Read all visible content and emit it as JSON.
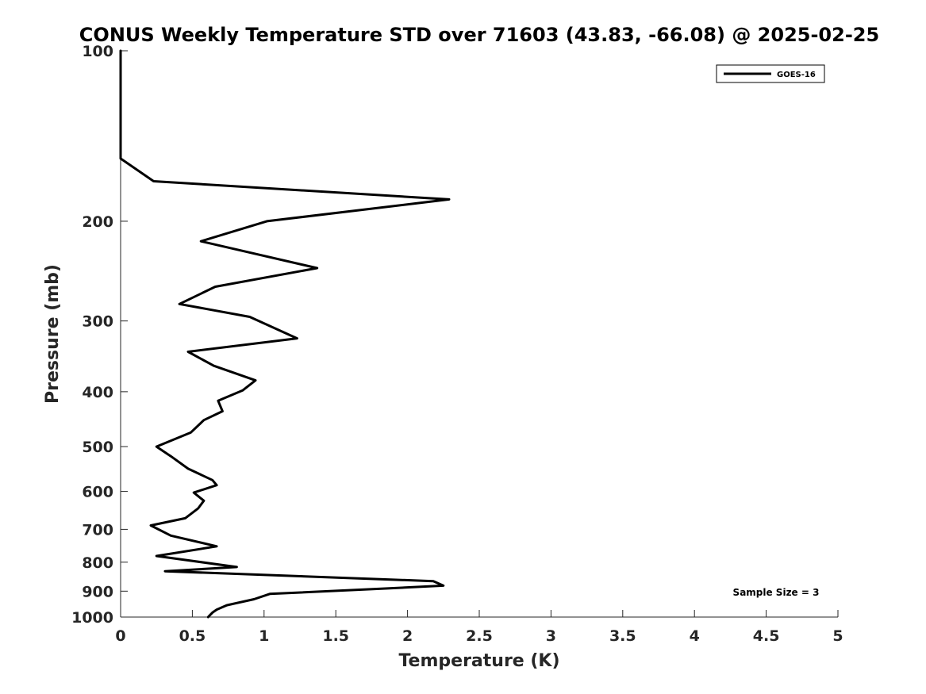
{
  "chart_data": {
    "type": "line",
    "title": "CONUS Weekly Temperature STD over 71603 (43.83, -66.08) @ 2025-02-25",
    "xlabel": "Temperature (K)",
    "ylabel": "Pressure (mb)",
    "xlim": [
      0,
      5
    ],
    "ylim": [
      100,
      1000
    ],
    "yscale": "log",
    "y_reversed": true,
    "grid": false,
    "x_ticks": [
      0,
      0.5,
      1,
      1.5,
      2,
      2.5,
      3,
      3.5,
      4,
      4.5,
      5
    ],
    "x_tick_labels": [
      "0",
      "0.5",
      "1",
      "1.5",
      "2",
      "2.5",
      "3",
      "3.5",
      "4",
      "4.5",
      "5"
    ],
    "y_ticks": [
      100,
      200,
      300,
      400,
      500,
      600,
      700,
      800,
      900,
      1000
    ],
    "y_tick_labels": [
      "100",
      "200",
      "300",
      "400",
      "500",
      "600",
      "700",
      "800",
      "900",
      "1000"
    ],
    "legend_position": "top-right",
    "annotation": "Sample Size = 3",
    "series": [
      {
        "name": "GOES-16",
        "color": "#000000",
        "x": [
          0,
          0,
          0.23,
          2.29,
          1.02,
          0.56,
          1.37,
          0.66,
          0.41,
          0.9,
          1.23,
          0.47,
          0.65,
          0.94,
          0.85,
          0.68,
          0.71,
          0.58,
          0.49,
          0.25,
          0.35,
          0.47,
          0.64,
          0.67,
          0.51,
          0.58,
          0.54,
          0.45,
          0.21,
          0.35,
          0.67,
          0.25,
          0.81,
          0.31,
          2.18,
          2.25,
          1.86,
          1.04,
          0.93,
          0.74,
          0.67,
          0.64,
          0.62,
          0.61
        ],
        "y": [
          100,
          155,
          170,
          183,
          200,
          217,
          242,
          261,
          280,
          295,
          322,
          340,
          360,
          382,
          398,
          415,
          433,
          449,
          472,
          500,
          520,
          547,
          573,
          585,
          603,
          623,
          643,
          669,
          689,
          718,
          750,
          780,
          816,
          830,
          864,
          880,
          890,
          910,
          930,
          953,
          970,
          982,
          994,
          1000
        ]
      }
    ]
  }
}
